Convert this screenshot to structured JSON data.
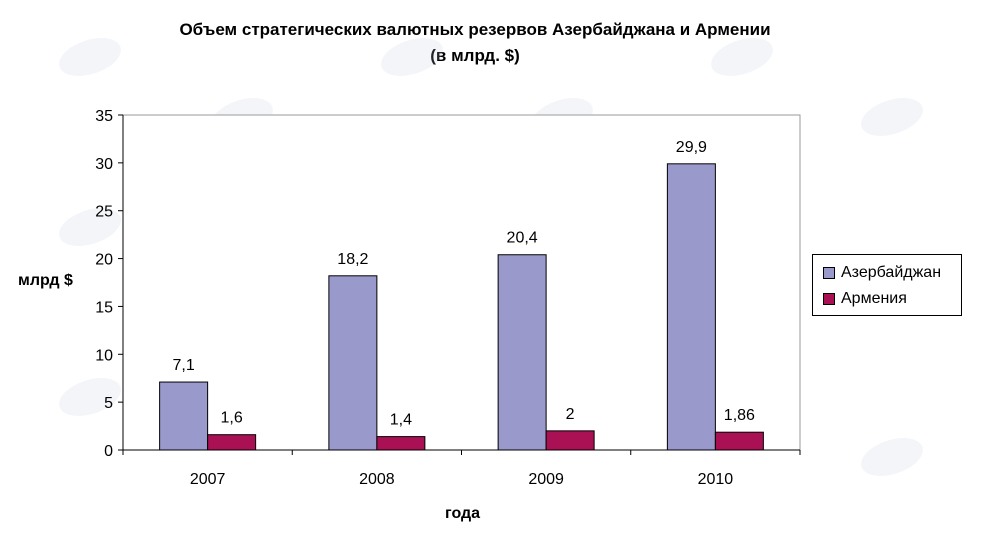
{
  "chart_data": {
    "type": "bar",
    "title": "Объем стратегических валютных резервов Азербайджана и Армении",
    "subtitle": "(в млрд. $)",
    "xlabel": "года",
    "ylabel": "млрд $",
    "categories": [
      "2007",
      "2008",
      "2009",
      "2010"
    ],
    "series": [
      {
        "name": "Азербайджан",
        "values": [
          7.1,
          18.2,
          20.4,
          29.9
        ],
        "labels": [
          "7,1",
          "18,2",
          "20,4",
          "29,9"
        ],
        "color": "#9999cc"
      },
      {
        "name": "Армения",
        "values": [
          1.6,
          1.4,
          2,
          1.86
        ],
        "labels": [
          "1,6",
          "1,4",
          "2",
          "1,86"
        ],
        "color": "#aa1155"
      }
    ],
    "ylim": [
      0,
      35
    ],
    "yticks": [
      0,
      5,
      10,
      15,
      20,
      25,
      30,
      35
    ],
    "grid": false,
    "legend_position": "right"
  }
}
